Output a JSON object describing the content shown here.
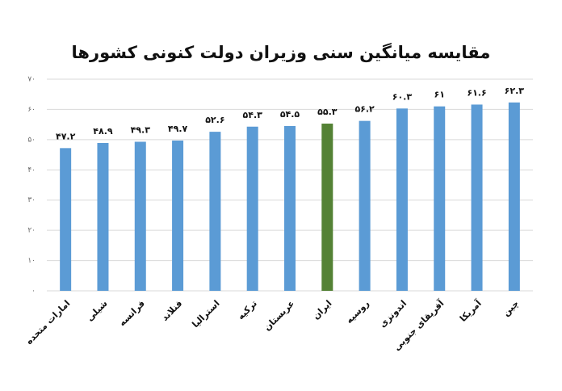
{
  "chart_data": {
    "type": "bar",
    "title": "مقایسه میانگین سنی وزیران دولت کنونی کشورها",
    "categories": [
      "امارات متحده",
      "شیلی",
      "فرانسه",
      "فنلاند",
      "استرالیا",
      "ترکیه",
      "عربستان",
      "ایران",
      "روسیه",
      "اندونزی",
      "آفریقای جنوبی",
      "آمریکا",
      "چین"
    ],
    "values": [
      47.2,
      48.9,
      49.3,
      49.7,
      52.6,
      54.3,
      54.5,
      55.3,
      56.2,
      60.3,
      61,
      61.6,
      62.3
    ],
    "value_labels": [
      "۴۷.۲",
      "۴۸.۹",
      "۴۹.۳",
      "۴۹.۷",
      "۵۲.۶",
      "۵۴.۳",
      "۵۴.۵",
      "۵۵.۳",
      "۵۶.۲",
      "۶۰.۳",
      "۶۱",
      "۶۱.۶",
      "۶۲.۳"
    ],
    "colors": [
      "#5b9bd5",
      "#5b9bd5",
      "#5b9bd5",
      "#5b9bd5",
      "#5b9bd5",
      "#5b9bd5",
      "#5b9bd5",
      "#548235",
      "#5b9bd5",
      "#5b9bd5",
      "#5b9bd5",
      "#5b9bd5",
      "#5b9bd5"
    ],
    "ylim": [
      0,
      70
    ],
    "yticks": [
      {
        "value": 0,
        "label": "۰"
      },
      {
        "value": 10,
        "label": "۱۰"
      },
      {
        "value": 20,
        "label": "۲۰"
      },
      {
        "value": 30,
        "label": "۳۰"
      },
      {
        "value": 40,
        "label": "۴۰"
      },
      {
        "value": 50,
        "label": "۵۰"
      },
      {
        "value": 60,
        "label": "۶۰"
      },
      {
        "value": 70,
        "label": "۷۰"
      }
    ],
    "grid": true
  }
}
